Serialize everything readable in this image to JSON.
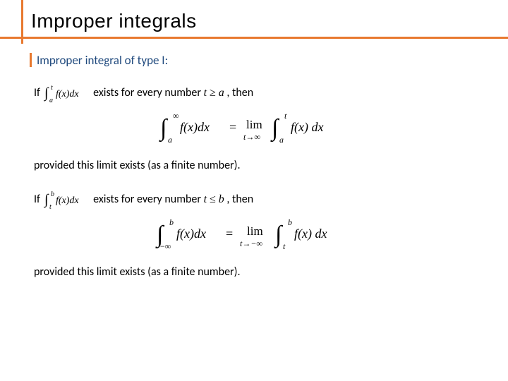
{
  "colors": {
    "accent": "#e8792f",
    "subtitle": "#1f497d",
    "text": "#000000",
    "background": "#ffffff"
  },
  "title": "Improper integrals",
  "subtitle": "Improper integral of type I:",
  "part1": {
    "prefix": "If ",
    "int_lower": "a",
    "int_upper": "t",
    "integrand": "f(x)dx",
    "mid": " exists for every number ",
    "cond": "t ≥ a",
    "suffix": ", then",
    "formula_lhs_lower": "a",
    "formula_lhs_upper": "∞",
    "formula_lhs_integrand": "f(x)dx",
    "formula_lim": "lim",
    "formula_lim_sub": "t→∞",
    "formula_rhs_lower": "a",
    "formula_rhs_upper": "t",
    "formula_rhs_integrand": "f(x) dx",
    "provided": "provided this limit exists (as a finite number)."
  },
  "part2": {
    "prefix": "If ",
    "int_lower": "t",
    "int_upper": "b",
    "integrand": "f(x)dx",
    "mid": " exists for every number ",
    "cond": "t ≤ b",
    "suffix": ", then",
    "formula_lhs_lower": "−∞",
    "formula_lhs_upper": "b",
    "formula_lhs_integrand": "f(x)dx",
    "formula_lim": "lim",
    "formula_lim_sub": "t→−∞",
    "formula_rhs_lower": "t",
    "formula_rhs_upper": "b",
    "formula_rhs_integrand": "f(x) dx",
    "provided": "provided this limit exists (as a finite number)."
  },
  "typography": {
    "title_fontsize": 28,
    "subtitle_fontsize": 17,
    "body_fontsize": 16,
    "formula_fontsize": 18
  }
}
